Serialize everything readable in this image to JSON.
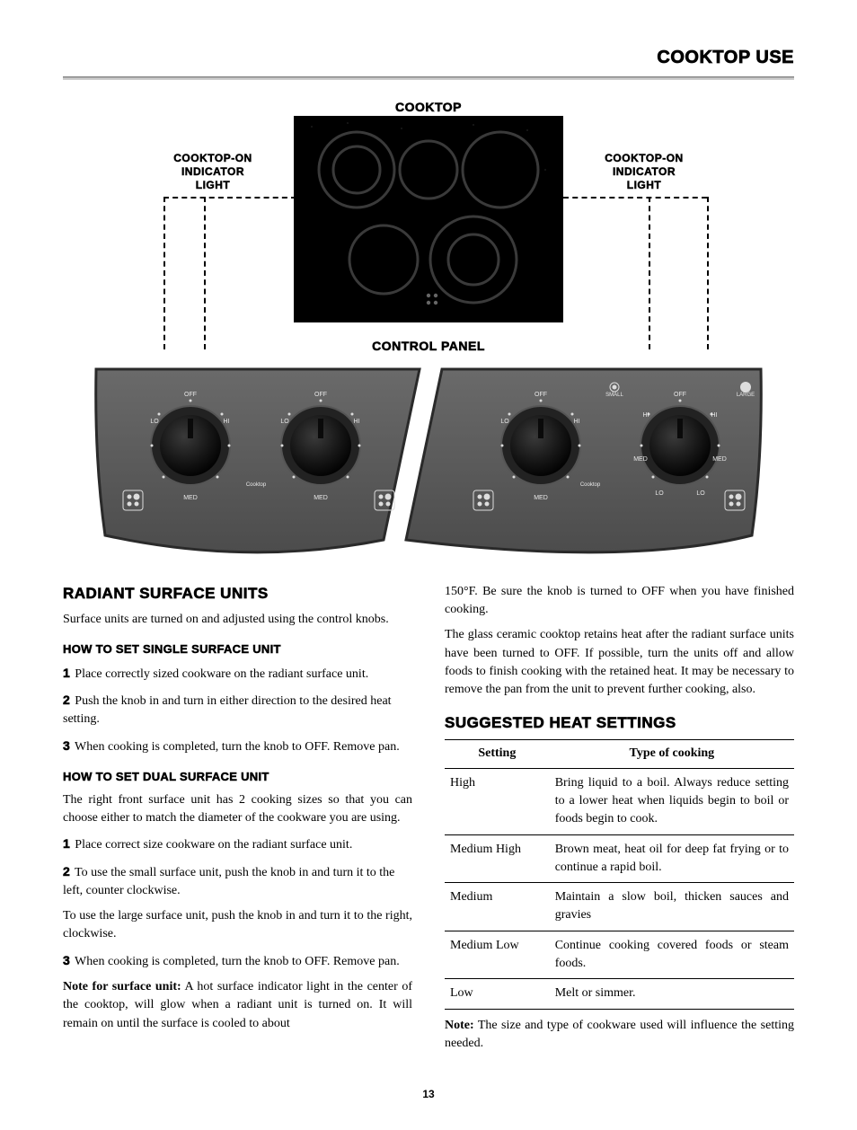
{
  "page_title": "COOKTOP USE",
  "page_number": "13",
  "diagram": {
    "cooktop_label": "COOKTOP",
    "indicator_label_line1": "COOKTOP-ON",
    "indicator_label_line2": "INDICATOR",
    "indicator_label_line3": "LIGHT",
    "control_panel_label": "CONTROL PANEL",
    "knob_labels": {
      "off": "OFF",
      "lo": "LO",
      "hi": "HI",
      "med": "MED",
      "cooktop": "Cooktop",
      "small": "SMALL",
      "large": "LARGE"
    },
    "colors": {
      "cooktop_bg": "#000000",
      "burner_stroke": "#3a3a3a",
      "panel_bg": "#5b5b5b",
      "panel_edge": "#2e2e2e",
      "knob_face": "#1a1a1a",
      "knob_ring": "#444444",
      "tiny_text": "#e8e8e8"
    }
  },
  "left": {
    "h_radiant": "RADIANT SURFACE UNITS",
    "radiant_intro": "Surface units are turned on and adjusted using the control knobs.",
    "h_single": "HOW TO SET SINGLE SURFACE UNIT",
    "single_steps": [
      "Place correctly sized cookware on the radiant surface unit.",
      "Push the knob in and turn in either direction to the desired heat setting.",
      "When cooking is completed, turn the knob to OFF. Remove pan."
    ],
    "h_dual": "HOW TO SET DUAL SURFACE UNIT",
    "dual_intro": "The right front surface unit has 2 cooking sizes so that you can choose either to match the diameter of the cookware you are using.",
    "dual_steps_1": "Place correct size cookware on the radiant surface unit.",
    "dual_steps_2": "To use the small surface unit, push the knob in and turn it to the left, counter clockwise.",
    "dual_large": "To use the large surface unit, push the knob in and turn it to the right, clockwise.",
    "dual_steps_3": "When cooking is completed, turn the knob to OFF. Remove pan.",
    "note_label": "Note for surface unit:",
    "note_body": " A hot surface indicator light in the center of the cooktop, will glow when a radiant unit is turned on. It will remain on until the surface is cooled to about"
  },
  "right": {
    "cont1": "150°F. Be sure the knob is turned to OFF when you have finished cooking.",
    "cont2": "The glass ceramic cooktop retains heat after the radiant surface units have been turned to OFF. If possible, turn the units off and allow foods to finish cooking with the retained heat. It may be necessary to remove the pan from the unit to prevent further cooking, also.",
    "h_suggested": "SUGGESTED HEAT SETTINGS",
    "table": {
      "head_setting": "Setting",
      "head_type": "Type of cooking",
      "rows": [
        {
          "s": "High",
          "t": "Bring liquid to a boil. Always reduce setting to a lower heat when liquids begin to boil or foods begin to cook."
        },
        {
          "s": "Medium High",
          "t": "Brown meat, heat oil for deep fat frying or to continue a rapid boil."
        },
        {
          "s": "Medium",
          "t": "Maintain a slow boil, thicken sauces and gravies"
        },
        {
          "s": "Medium Low",
          "t": "Continue cooking covered foods or steam foods."
        },
        {
          "s": "Low",
          "t": "Melt or simmer."
        }
      ]
    },
    "note_label": "Note:",
    "note_body": " The size and type of cookware used will influence the setting needed."
  }
}
